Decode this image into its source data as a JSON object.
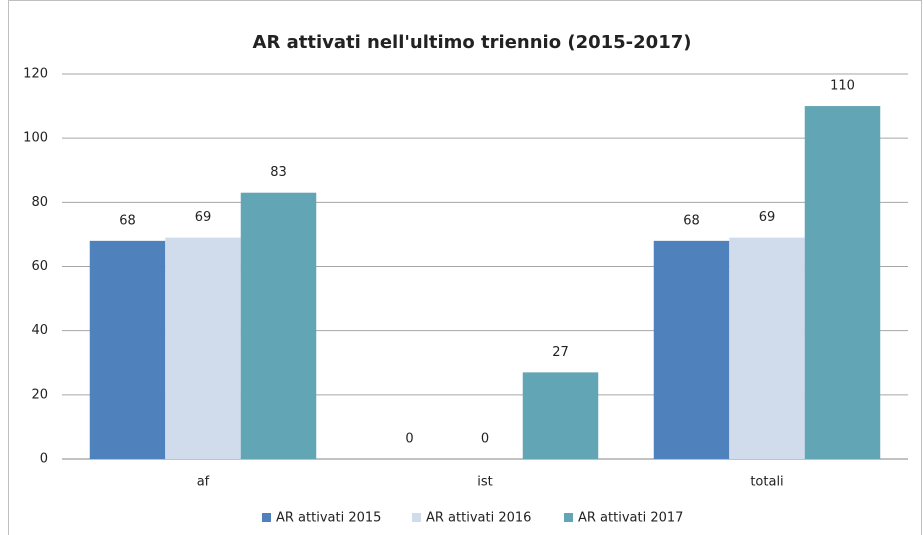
{
  "chart_data": {
    "type": "bar",
    "title": "AR attivati nell'ultimo triennio (2015-2017)",
    "categories": [
      "af",
      "ist",
      "totali"
    ],
    "series": [
      {
        "name": "AR attivati 2015",
        "color": "#4f81bd",
        "values": [
          68,
          0,
          68
        ]
      },
      {
        "name": "AR attivati 2016",
        "color": "#d0dcec",
        "values": [
          69,
          0,
          69
        ]
      },
      {
        "name": "AR attivati 2017",
        "color": "#62a5b5",
        "values": [
          83,
          27,
          110
        ]
      }
    ],
    "ylim": [
      0,
      120
    ],
    "yticks": [
      0,
      20,
      40,
      60,
      80,
      100,
      120
    ],
    "grid": true,
    "legend": "bottom",
    "data_labels": true
  }
}
